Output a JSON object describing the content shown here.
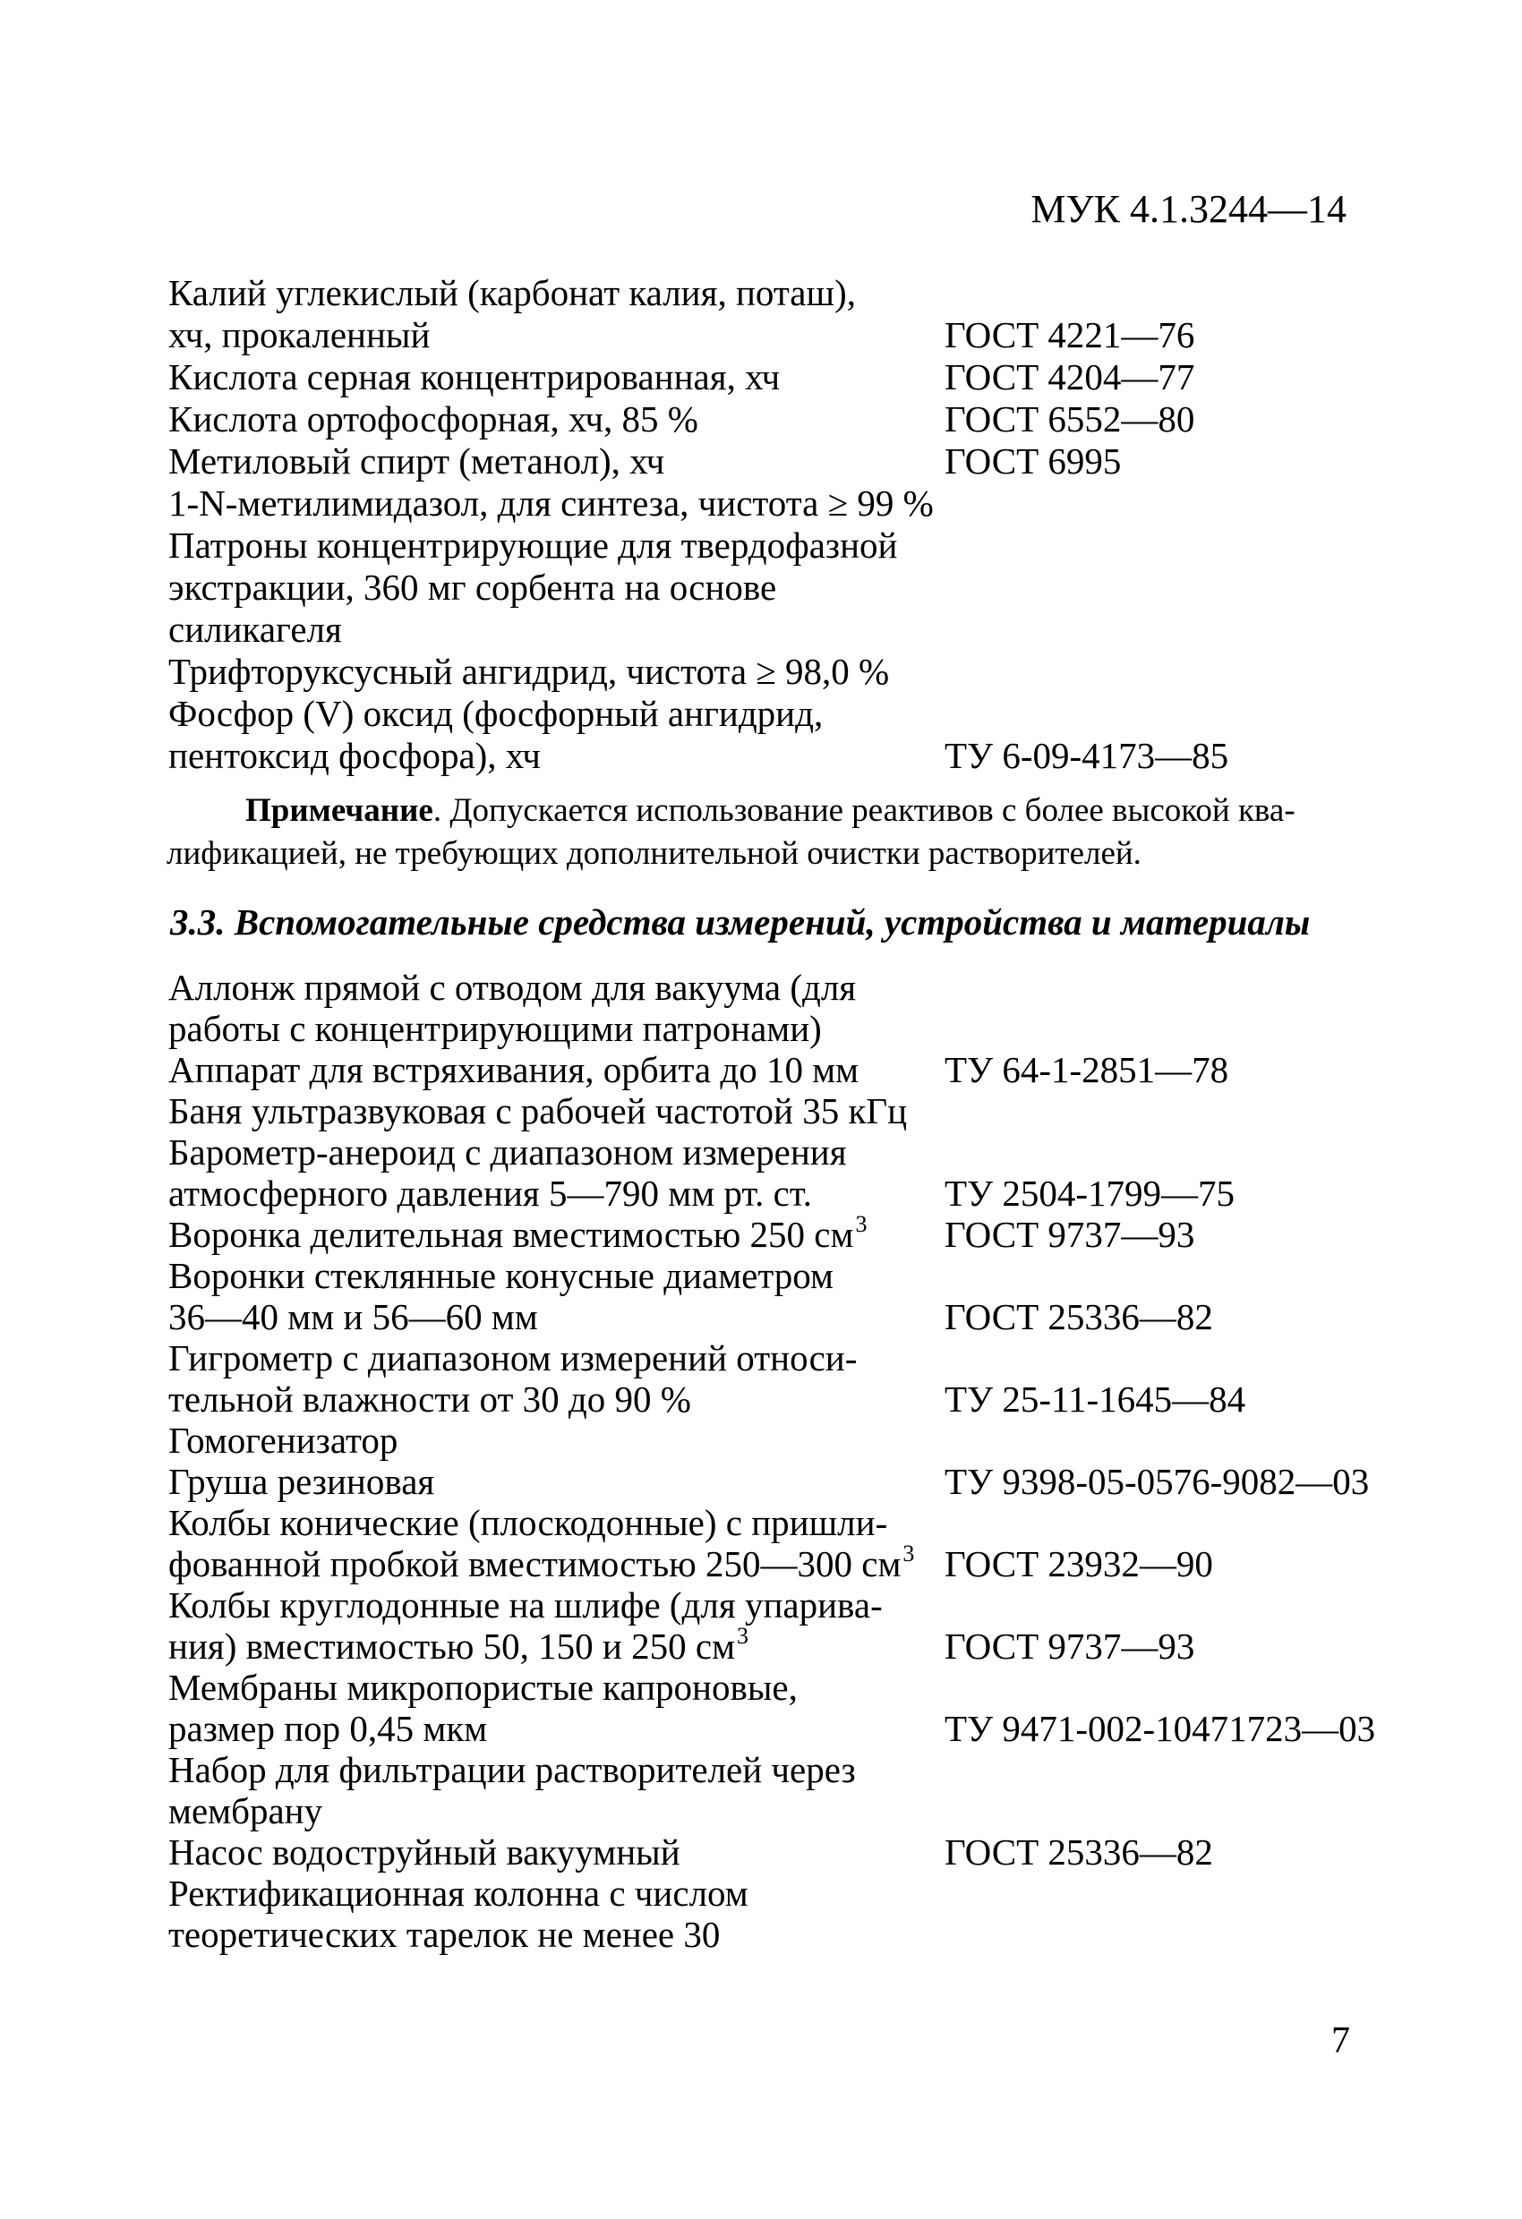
{
  "header": {
    "code": "МУК 4.1.3244—14"
  },
  "page_number": "7",
  "note": {
    "label": "Примечание",
    "line1_rest": ". Допускается использование реактивов с более высокой ква-",
    "line2": "лификацией, не требующих дополнительной очистки растворителей."
  },
  "section_heading": "3.3. Вспомогательные средства измерений, устройства и материалы",
  "reagents_list": {
    "lines": [
      {
        "left": "Калий углекислый (карбонат калия, поташ),",
        "right": ""
      },
      {
        "left": "хч, прокаленный",
        "right": "ГОСТ 4221—76"
      },
      {
        "left": "Кислота серная концентрированная, хч",
        "right": "ГОСТ 4204—77"
      },
      {
        "left": "Кислота ортофосфорная, хч, 85 %",
        "right": "ГОСТ 6552—80"
      },
      {
        "left": "Метиловый спирт (метанол), хч",
        "right": "ГОСТ 6995"
      },
      {
        "left": "1-N-метилимидазол, для синтеза, чистота ≥ 99 %",
        "right": ""
      },
      {
        "left": "Патроны концентрирующие для твердофазной",
        "right": ""
      },
      {
        "left": "экстракции, 360 мг сорбента на основе",
        "right": ""
      },
      {
        "left": "силикагеля",
        "right": ""
      },
      {
        "left": "Трифторуксусный ангидрид, чистота ≥ 98,0 %",
        "right": ""
      },
      {
        "left": "Фосфор (V) оксид (фосфорный ангидрид,",
        "right": ""
      },
      {
        "left": "пентоксид фосфора), хч",
        "right": "ТУ 6-09-4173—85"
      }
    ]
  },
  "equipment_list": {
    "lines": [
      {
        "left": "Аллонж прямой с отводом для вакуума (для",
        "right": ""
      },
      {
        "left": "работы с концентрирующими патронами)",
        "right": ""
      },
      {
        "left": "Аппарат для встряхивания, орбита до 10 мм",
        "right": "ТУ 64-1-2851—78"
      },
      {
        "left": "Баня ультразвуковая с рабочей частотой 35 кГц",
        "right": ""
      },
      {
        "left": "Барометр-анероид с диапазоном измерения",
        "right": ""
      },
      {
        "left": "атмосферного давления 5—790 мм рт. ст.",
        "right": "ТУ 2504-1799—75"
      },
      {
        "left": "Воронка делительная вместимостью 250 см",
        "left_sup": "3",
        "right": "ГОСТ 9737—93"
      },
      {
        "left": "Воронки стеклянные конусные диаметром",
        "right": ""
      },
      {
        "left": "36—40 мм и 56—60 мм",
        "right": "ГОСТ 25336—82"
      },
      {
        "left": "Гигрометр с диапазоном измерений относи-",
        "right": ""
      },
      {
        "left": "тельной влажности от 30 до 90 %",
        "right": "ТУ 25-11-1645—84"
      },
      {
        "left": "Гомогенизатор",
        "right": ""
      },
      {
        "left": "Груша резиновая",
        "right": "ТУ 9398-05-0576-9082—03"
      },
      {
        "left": "Колбы конические (плоскодонные) с пришли-",
        "right": ""
      },
      {
        "left": "фованной пробкой вместимостью 250—300 см",
        "left_sup": "3",
        "right": "ГОСТ 23932—90"
      },
      {
        "left": "Колбы круглодонные на шлифе (для упарива-",
        "right": ""
      },
      {
        "left": "ния) вместимостью 50, 150 и 250 см",
        "left_sup": "3",
        "right": "ГОСТ 9737—93"
      },
      {
        "left": "Мембраны микропористые капроновые,",
        "right": ""
      },
      {
        "left": "размер пор 0,45 мкм",
        "right": "ТУ 9471-002-10471723—03"
      },
      {
        "left": "Набор для фильтрации растворителей через",
        "right": ""
      },
      {
        "left": "мембрану",
        "right": ""
      },
      {
        "left": "Насос водоструйный вакуумный",
        "right": "ГОСТ 25336—82"
      },
      {
        "left": "Ректификационная колонна с числом",
        "right": ""
      },
      {
        "left": "теоретических тарелок не менее 30",
        "right": ""
      }
    ]
  }
}
